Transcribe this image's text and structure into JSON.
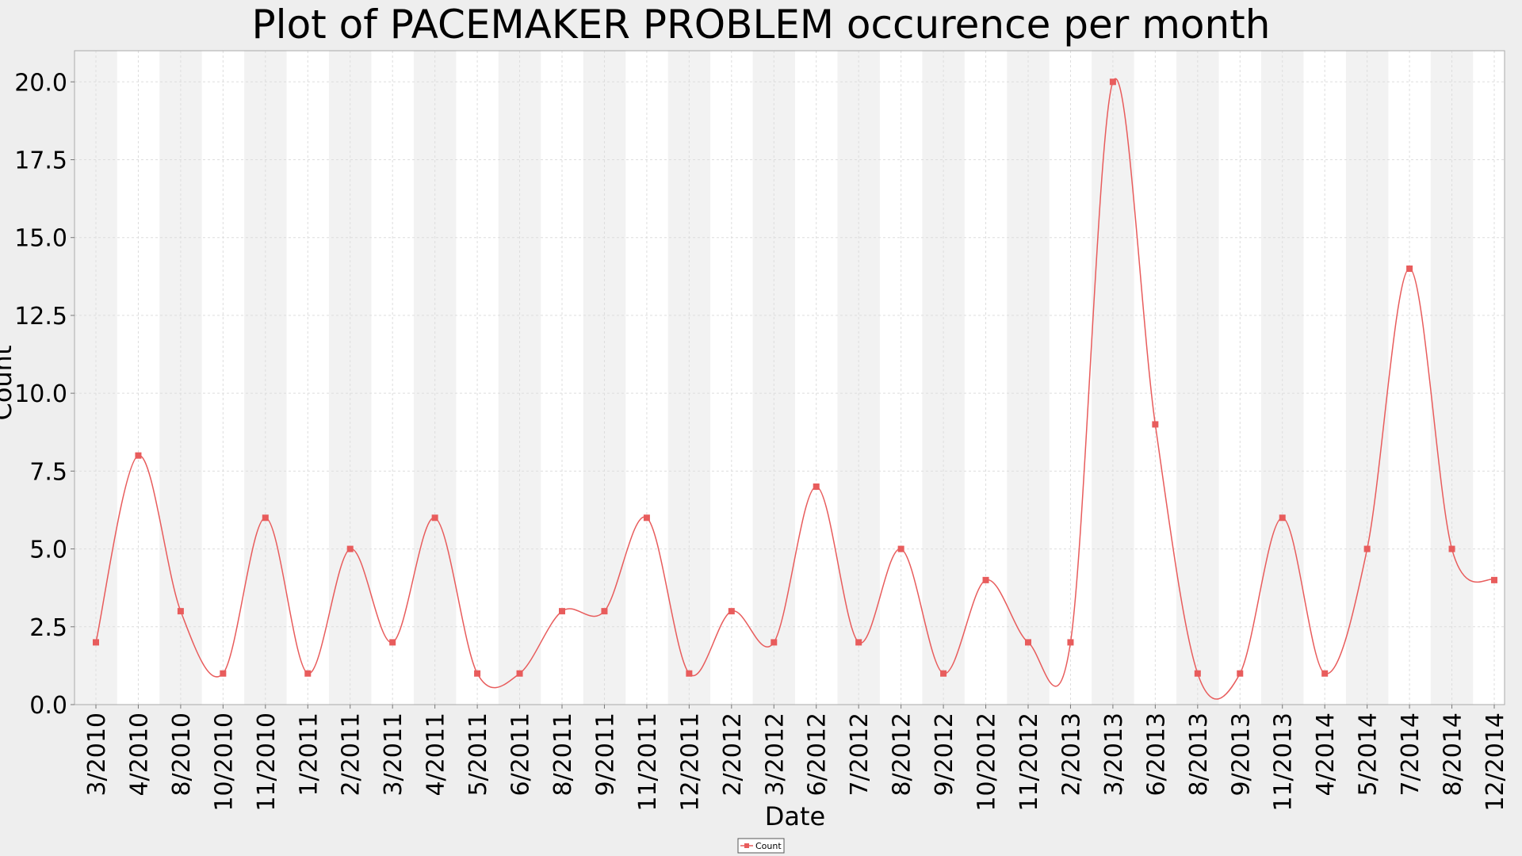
{
  "chart_data": {
    "type": "line",
    "title": "Plot of PACEMAKER PROBLEM occurence per month",
    "xlabel": "Date",
    "ylabel": "Count",
    "ylim": [
      0,
      21
    ],
    "y_ticks": [
      "0.0",
      "2.5",
      "5.0",
      "7.5",
      "10.0",
      "12.5",
      "15.0",
      "17.5",
      "20.0"
    ],
    "categories": [
      "3/2010",
      "4/2010",
      "8/2010",
      "10/2010",
      "11/2010",
      "1/2011",
      "2/2011",
      "3/2011",
      "4/2011",
      "5/2011",
      "6/2011",
      "8/2011",
      "9/2011",
      "11/2011",
      "12/2011",
      "2/2012",
      "3/2012",
      "6/2012",
      "7/2012",
      "8/2012",
      "9/2012",
      "10/2012",
      "11/2012",
      "2/2013",
      "3/2013",
      "6/2013",
      "8/2013",
      "9/2013",
      "11/2013",
      "4/2014",
      "5/2014",
      "7/2014",
      "8/2014",
      "12/2014"
    ],
    "series": [
      {
        "name": "Count",
        "color": "#e85c5c",
        "values": [
          2,
          8,
          3,
          1,
          6,
          1,
          5,
          2,
          6,
          1,
          1,
          3,
          3,
          6,
          1,
          3,
          2,
          7,
          2,
          5,
          1,
          4,
          2,
          2,
          20,
          9,
          1,
          1,
          6,
          1,
          5,
          14,
          5,
          4
        ]
      }
    ],
    "grid": true,
    "legend": "bottom-center"
  }
}
